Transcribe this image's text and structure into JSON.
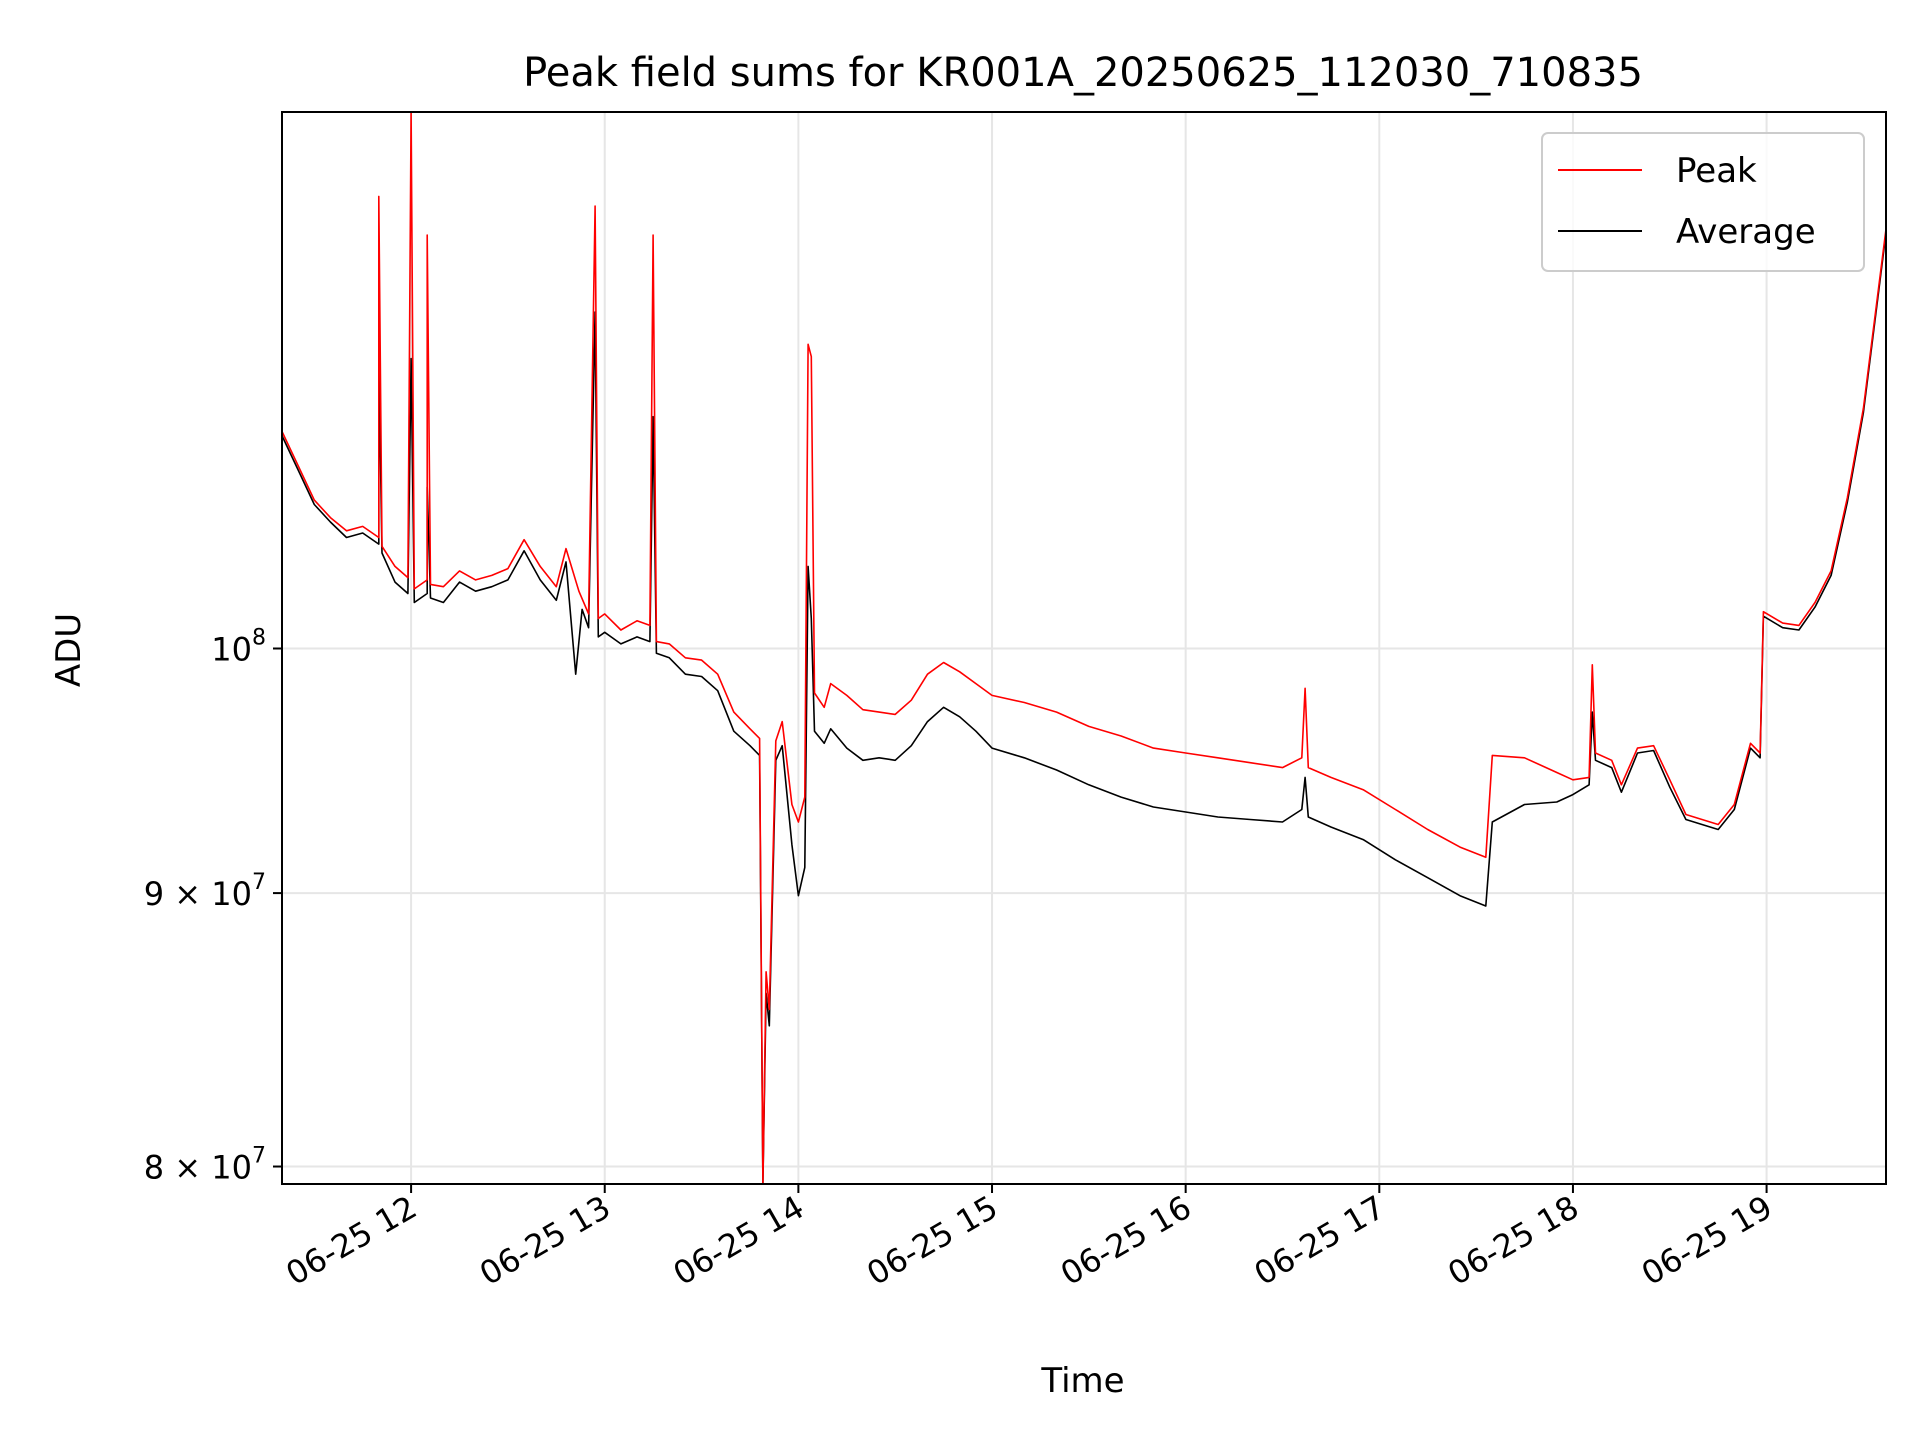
{
  "chart_data": {
    "type": "line",
    "title": "Peak field sums for KR001A_20250625_112030_710835",
    "xlabel": "Time",
    "ylabel": "ADU",
    "y_scale": "log",
    "x_range": [
      "2025-06-25 11:20",
      "2025-06-25 19:37"
    ],
    "ylim": [
      79400000,
      126000000
    ],
    "grid": true,
    "legend_position": "top-right",
    "x_ticks": [
      {
        "t": "2025-06-25 12:00",
        "label": "06-25 12"
      },
      {
        "t": "2025-06-25 13:00",
        "label": "06-25 13"
      },
      {
        "t": "2025-06-25 14:00",
        "label": "06-25 14"
      },
      {
        "t": "2025-06-25 15:00",
        "label": "06-25 15"
      },
      {
        "t": "2025-06-25 16:00",
        "label": "06-25 16"
      },
      {
        "t": "2025-06-25 17:00",
        "label": "06-25 17"
      },
      {
        "t": "2025-06-25 18:00",
        "label": "06-25 18"
      },
      {
        "t": "2025-06-25 19:00",
        "label": "06-25 19"
      }
    ],
    "y_ticks": [
      {
        "value": 100000000,
        "base": "10",
        "exp": "8"
      },
      {
        "value": 90000000,
        "base": "9 × 10",
        "exp": "7"
      },
      {
        "value": 80000000,
        "base": "8 × 10",
        "exp": "7"
      }
    ],
    "series": [
      {
        "name": "Peak",
        "color": "#ff0000",
        "points": [
          [
            "2025-06-25 11:20",
            109800000
          ],
          [
            "2025-06-25 11:25",
            108200000
          ],
          [
            "2025-06-25 11:30",
            106600000
          ],
          [
            "2025-06-25 11:35",
            105800000
          ],
          [
            "2025-06-25 11:40",
            105200000
          ],
          [
            "2025-06-25 11:45",
            105400000
          ],
          [
            "2025-06-25 11:50",
            104900000
          ],
          [
            "2025-06-25 11:50",
            121500000
          ],
          [
            "2025-06-25 11:51",
            104500000
          ],
          [
            "2025-06-25 11:55",
            103600000
          ],
          [
            "2025-06-25 11:59",
            103100000
          ],
          [
            "2025-06-25 12:00",
            126000000
          ],
          [
            "2025-06-25 12:01",
            102600000
          ],
          [
            "2025-06-25 12:05",
            103000000
          ],
          [
            "2025-06-25 12:05",
            119500000
          ],
          [
            "2025-06-25 12:06",
            102800000
          ],
          [
            "2025-06-25 12:10",
            102700000
          ],
          [
            "2025-06-25 12:15",
            103400000
          ],
          [
            "2025-06-25 12:20",
            103000000
          ],
          [
            "2025-06-25 12:25",
            103200000
          ],
          [
            "2025-06-25 12:30",
            103500000
          ],
          [
            "2025-06-25 12:35",
            104800000
          ],
          [
            "2025-06-25 12:40",
            103600000
          ],
          [
            "2025-06-25 12:45",
            102700000
          ],
          [
            "2025-06-25 12:48",
            104400000
          ],
          [
            "2025-06-25 12:52",
            102500000
          ],
          [
            "2025-06-25 12:55",
            101500000
          ],
          [
            "2025-06-25 12:57",
            121000000
          ],
          [
            "2025-06-25 12:58",
            101300000
          ],
          [
            "2025-06-25 13:00",
            101500000
          ],
          [
            "2025-06-25 13:05",
            100800000
          ],
          [
            "2025-06-25 13:10",
            101200000
          ],
          [
            "2025-06-25 13:14",
            101000000
          ],
          [
            "2025-06-25 13:15",
            119500000
          ],
          [
            "2025-06-25 13:16",
            100300000
          ],
          [
            "2025-06-25 13:20",
            100200000
          ],
          [
            "2025-06-25 13:25",
            99600000
          ],
          [
            "2025-06-25 13:30",
            99500000
          ],
          [
            "2025-06-25 13:35",
            98900000
          ],
          [
            "2025-06-25 13:40",
            97300000
          ],
          [
            "2025-06-25 13:45",
            96600000
          ],
          [
            "2025-06-25 13:48",
            96200000
          ],
          [
            "2025-06-25 13:49",
            79400000
          ],
          [
            "2025-06-25 13:50",
            87000000
          ],
          [
            "2025-06-25 13:51",
            85600000
          ],
          [
            "2025-06-25 13:53",
            96100000
          ],
          [
            "2025-06-25 13:55",
            96900000
          ],
          [
            "2025-06-25 13:58",
            93500000
          ],
          [
            "2025-06-25 14:00",
            92800000
          ],
          [
            "2025-06-25 14:02",
            93800000
          ],
          [
            "2025-06-25 14:03",
            114000000
          ],
          [
            "2025-06-25 14:04",
            113400000
          ],
          [
            "2025-06-25 14:05",
            98100000
          ],
          [
            "2025-06-25 14:08",
            97500000
          ],
          [
            "2025-06-25 14:10",
            98500000
          ],
          [
            "2025-06-25 14:15",
            98000000
          ],
          [
            "2025-06-25 14:20",
            97400000
          ],
          [
            "2025-06-25 14:25",
            97300000
          ],
          [
            "2025-06-25 14:30",
            97200000
          ],
          [
            "2025-06-25 14:35",
            97800000
          ],
          [
            "2025-06-25 14:40",
            98900000
          ],
          [
            "2025-06-25 14:45",
            99400000
          ],
          [
            "2025-06-25 14:50",
            99000000
          ],
          [
            "2025-06-25 14:55",
            98500000
          ],
          [
            "2025-06-25 15:00",
            98000000
          ],
          [
            "2025-06-25 15:10",
            97700000
          ],
          [
            "2025-06-25 15:20",
            97300000
          ],
          [
            "2025-06-25 15:30",
            96700000
          ],
          [
            "2025-06-25 15:40",
            96300000
          ],
          [
            "2025-06-25 15:50",
            95800000
          ],
          [
            "2025-06-25 16:00",
            95600000
          ],
          [
            "2025-06-25 16:10",
            95400000
          ],
          [
            "2025-06-25 16:20",
            95200000
          ],
          [
            "2025-06-25 16:30",
            95000000
          ],
          [
            "2025-06-25 16:36",
            95400000
          ],
          [
            "2025-06-25 16:37",
            98300000
          ],
          [
            "2025-06-25 16:38",
            95000000
          ],
          [
            "2025-06-25 16:45",
            94600000
          ],
          [
            "2025-06-25 16:55",
            94100000
          ],
          [
            "2025-06-25 17:05",
            93300000
          ],
          [
            "2025-06-25 17:15",
            92500000
          ],
          [
            "2025-06-25 17:25",
            91800000
          ],
          [
            "2025-06-25 17:33",
            91400000
          ],
          [
            "2025-06-25 17:35",
            95500000
          ],
          [
            "2025-06-25 17:45",
            95400000
          ],
          [
            "2025-06-25 17:55",
            94800000
          ],
          [
            "2025-06-25 18:00",
            94500000
          ],
          [
            "2025-06-25 18:05",
            94600000
          ],
          [
            "2025-06-25 18:06",
            99300000
          ],
          [
            "2025-06-25 18:07",
            95600000
          ],
          [
            "2025-06-25 18:12",
            95300000
          ],
          [
            "2025-06-25 18:15",
            94300000
          ],
          [
            "2025-06-25 18:20",
            95800000
          ],
          [
            "2025-06-25 18:25",
            95900000
          ],
          [
            "2025-06-25 18:30",
            94500000
          ],
          [
            "2025-06-25 18:35",
            93100000
          ],
          [
            "2025-06-25 18:40",
            92900000
          ],
          [
            "2025-06-25 18:45",
            92700000
          ],
          [
            "2025-06-25 18:50",
            93500000
          ],
          [
            "2025-06-25 18:55",
            96000000
          ],
          [
            "2025-06-25 18:58",
            95600000
          ],
          [
            "2025-06-25 18:59",
            101600000
          ],
          [
            "2025-06-25 19:05",
            101100000
          ],
          [
            "2025-06-25 19:10",
            101000000
          ],
          [
            "2025-06-25 19:15",
            102000000
          ],
          [
            "2025-06-25 19:20",
            103400000
          ],
          [
            "2025-06-25 19:25",
            106700000
          ],
          [
            "2025-06-25 19:30",
            110900000
          ],
          [
            "2025-06-25 19:37",
            119800000
          ]
        ]
      },
      {
        "name": "Average",
        "color": "#000000",
        "points": [
          [
            "2025-06-25 11:20",
            109600000
          ],
          [
            "2025-06-25 11:25",
            108000000
          ],
          [
            "2025-06-25 11:30",
            106400000
          ],
          [
            "2025-06-25 11:35",
            105600000
          ],
          [
            "2025-06-25 11:40",
            104900000
          ],
          [
            "2025-06-25 11:45",
            105100000
          ],
          [
            "2025-06-25 11:50",
            104600000
          ],
          [
            "2025-06-25 11:50",
            113300000
          ],
          [
            "2025-06-25 11:51",
            104200000
          ],
          [
            "2025-06-25 11:55",
            102900000
          ],
          [
            "2025-06-25 11:59",
            102400000
          ],
          [
            "2025-06-25 12:00",
            113300000
          ],
          [
            "2025-06-25 12:01",
            102000000
          ],
          [
            "2025-06-25 12:05",
            102400000
          ],
          [
            "2025-06-25 12:05",
            107200000
          ],
          [
            "2025-06-25 12:06",
            102200000
          ],
          [
            "2025-06-25 12:10",
            102000000
          ],
          [
            "2025-06-25 12:15",
            102900000
          ],
          [
            "2025-06-25 12:20",
            102500000
          ],
          [
            "2025-06-25 12:25",
            102700000
          ],
          [
            "2025-06-25 12:30",
            103000000
          ],
          [
            "2025-06-25 12:35",
            104300000
          ],
          [
            "2025-06-25 12:40",
            103000000
          ],
          [
            "2025-06-25 12:45",
            102100000
          ],
          [
            "2025-06-25 12:48",
            103800000
          ],
          [
            "2025-06-25 12:51",
            98900000
          ],
          [
            "2025-06-25 12:53",
            101700000
          ],
          [
            "2025-06-25 12:55",
            100900000
          ],
          [
            "2025-06-25 12:57",
            115600000
          ],
          [
            "2025-06-25 12:58",
            100500000
          ],
          [
            "2025-06-25 13:00",
            100700000
          ],
          [
            "2025-06-25 13:05",
            100200000
          ],
          [
            "2025-06-25 13:10",
            100500000
          ],
          [
            "2025-06-25 13:14",
            100300000
          ],
          [
            "2025-06-25 13:15",
            110500000
          ],
          [
            "2025-06-25 13:16",
            99800000
          ],
          [
            "2025-06-25 13:20",
            99600000
          ],
          [
            "2025-06-25 13:25",
            98900000
          ],
          [
            "2025-06-25 13:30",
            98800000
          ],
          [
            "2025-06-25 13:35",
            98200000
          ],
          [
            "2025-06-25 13:40",
            96500000
          ],
          [
            "2025-06-25 13:45",
            95900000
          ],
          [
            "2025-06-25 13:48",
            95500000
          ],
          [
            "2025-06-25 13:49",
            79400000
          ],
          [
            "2025-06-25 13:50",
            86200000
          ],
          [
            "2025-06-25 13:51",
            85000000
          ],
          [
            "2025-06-25 13:53",
            95300000
          ],
          [
            "2025-06-25 13:55",
            95900000
          ],
          [
            "2025-06-25 13:58",
            91900000
          ],
          [
            "2025-06-25 14:00",
            89900000
          ],
          [
            "2025-06-25 14:02",
            91000000
          ],
          [
            "2025-06-25 14:03",
            103600000
          ],
          [
            "2025-06-25 14:04",
            101300000
          ],
          [
            "2025-06-25 14:05",
            96500000
          ],
          [
            "2025-06-25 14:08",
            96000000
          ],
          [
            "2025-06-25 14:10",
            96600000
          ],
          [
            "2025-06-25 14:15",
            95800000
          ],
          [
            "2025-06-25 14:20",
            95300000
          ],
          [
            "2025-06-25 14:25",
            95400000
          ],
          [
            "2025-06-25 14:30",
            95300000
          ],
          [
            "2025-06-25 14:35",
            95900000
          ],
          [
            "2025-06-25 14:40",
            96900000
          ],
          [
            "2025-06-25 14:45",
            97500000
          ],
          [
            "2025-06-25 14:50",
            97100000
          ],
          [
            "2025-06-25 14:55",
            96500000
          ],
          [
            "2025-06-25 15:00",
            95800000
          ],
          [
            "2025-06-25 15:10",
            95400000
          ],
          [
            "2025-06-25 15:20",
            94900000
          ],
          [
            "2025-06-25 15:30",
            94300000
          ],
          [
            "2025-06-25 15:40",
            93800000
          ],
          [
            "2025-06-25 15:50",
            93400000
          ],
          [
            "2025-06-25 16:00",
            93200000
          ],
          [
            "2025-06-25 16:10",
            93000000
          ],
          [
            "2025-06-25 16:20",
            92900000
          ],
          [
            "2025-06-25 16:30",
            92800000
          ],
          [
            "2025-06-25 16:36",
            93300000
          ],
          [
            "2025-06-25 16:37",
            94600000
          ],
          [
            "2025-06-25 16:38",
            93000000
          ],
          [
            "2025-06-25 16:45",
            92600000
          ],
          [
            "2025-06-25 16:55",
            92100000
          ],
          [
            "2025-06-25 17:05",
            91300000
          ],
          [
            "2025-06-25 17:15",
            90600000
          ],
          [
            "2025-06-25 17:25",
            89900000
          ],
          [
            "2025-06-25 17:33",
            89500000
          ],
          [
            "2025-06-25 17:35",
            92800000
          ],
          [
            "2025-06-25 17:45",
            93500000
          ],
          [
            "2025-06-25 17:55",
            93600000
          ],
          [
            "2025-06-25 18:00",
            93900000
          ],
          [
            "2025-06-25 18:05",
            94300000
          ],
          [
            "2025-06-25 18:06",
            97300000
          ],
          [
            "2025-06-25 18:07",
            95300000
          ],
          [
            "2025-06-25 18:12",
            95000000
          ],
          [
            "2025-06-25 18:15",
            94000000
          ],
          [
            "2025-06-25 18:20",
            95600000
          ],
          [
            "2025-06-25 18:25",
            95700000
          ],
          [
            "2025-06-25 18:30",
            94200000
          ],
          [
            "2025-06-25 18:35",
            92900000
          ],
          [
            "2025-06-25 18:40",
            92700000
          ],
          [
            "2025-06-25 18:45",
            92500000
          ],
          [
            "2025-06-25 18:50",
            93300000
          ],
          [
            "2025-06-25 18:55",
            95800000
          ],
          [
            "2025-06-25 18:58",
            95400000
          ],
          [
            "2025-06-25 18:59",
            101400000
          ],
          [
            "2025-06-25 19:05",
            100900000
          ],
          [
            "2025-06-25 19:10",
            100800000
          ],
          [
            "2025-06-25 19:15",
            101800000
          ],
          [
            "2025-06-25 19:20",
            103200000
          ],
          [
            "2025-06-25 19:25",
            106500000
          ],
          [
            "2025-06-25 19:30",
            110700000
          ],
          [
            "2025-06-25 19:37",
            119600000
          ]
        ]
      }
    ]
  }
}
